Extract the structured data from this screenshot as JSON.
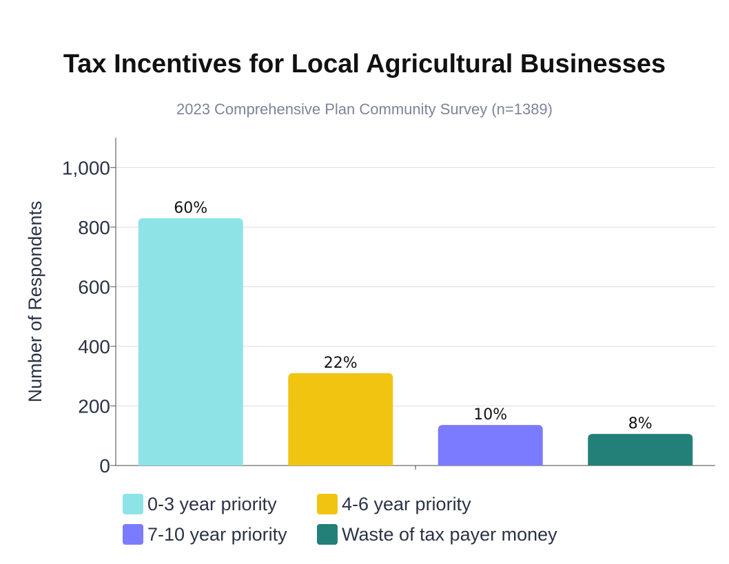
{
  "chart_data": {
    "type": "bar",
    "title": "Tax Incentives for Local Agricultural Businesses",
    "subtitle": "2023 Comprehensive Plan Community Survey (n=1389)",
    "ylabel": "Number of Respondents",
    "xlabel": "",
    "categories": [
      "0-3 year priority",
      "4-6 year priority",
      "7-10 year priority",
      "Waste of tax payer money"
    ],
    "values": [
      830,
      310,
      136,
      106
    ],
    "data_labels": [
      "60%",
      "22%",
      "10%",
      "8%"
    ],
    "colors": [
      "#8ee3e7",
      "#f2c412",
      "#7b7bff",
      "#238079"
    ],
    "ylim": [
      0,
      1100
    ],
    "yticks": [
      0,
      200,
      400,
      600,
      800,
      1000
    ],
    "ytick_labels": [
      "0",
      "200",
      "400",
      "600",
      "800",
      "1,000"
    ],
    "grid": true,
    "legend_position": "bottom"
  }
}
